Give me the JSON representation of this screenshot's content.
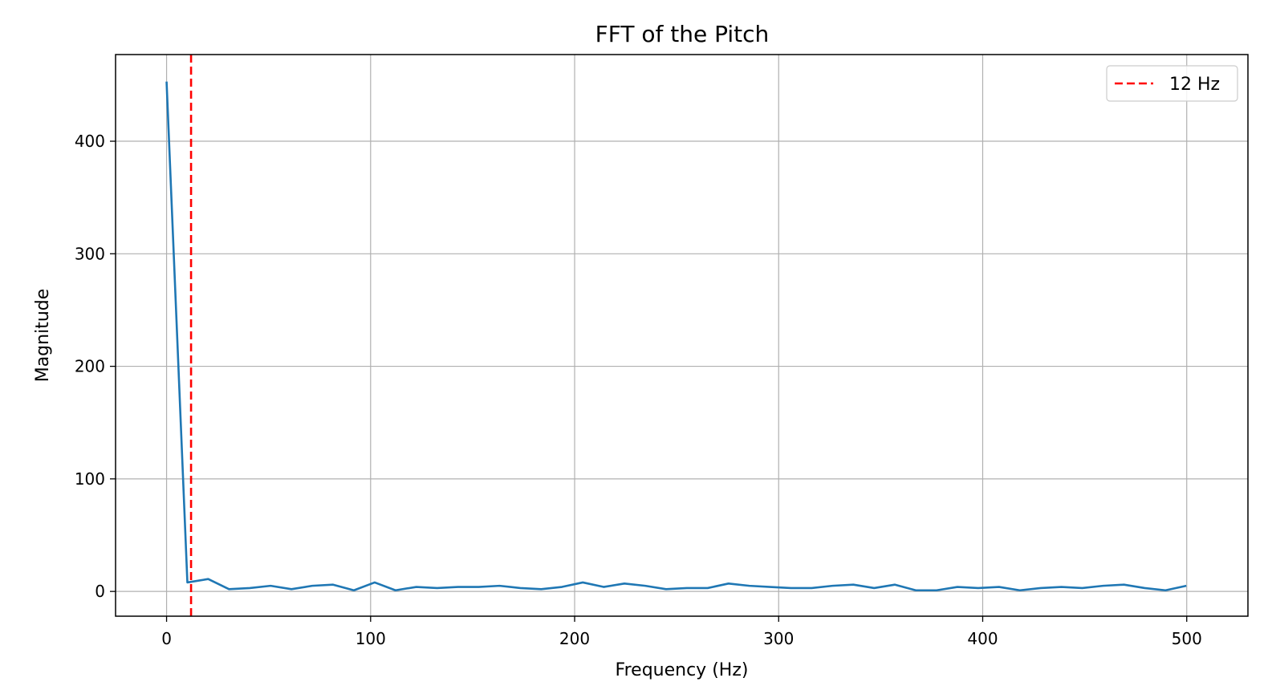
{
  "chart_data": {
    "type": "line",
    "title": "FFT of the Pitch",
    "xlabel": "Frequency (Hz)",
    "ylabel": "Magnitude",
    "xlim": [
      -25,
      530
    ],
    "ylim": [
      -22,
      477
    ],
    "xticks": [
      0,
      100,
      200,
      300,
      400,
      500
    ],
    "yticks": [
      0,
      100,
      200,
      300,
      400
    ],
    "grid": true,
    "legend_position": "top-right",
    "series": [
      {
        "color": "#1f77b4",
        "x": [
          0,
          10.2,
          20.4,
          30.6,
          40.8,
          51.0,
          61.2,
          71.4,
          81.6,
          91.8,
          102.0,
          112.2,
          122.4,
          132.6,
          142.8,
          153.0,
          163.2,
          173.4,
          183.6,
          193.8,
          204.0,
          214.2,
          224.4,
          234.6,
          244.8,
          255.0,
          265.2,
          275.4,
          285.6,
          295.8,
          306.0,
          316.2,
          326.4,
          336.6,
          346.8,
          357.0,
          367.2,
          377.4,
          387.6,
          397.8,
          408.0,
          418.2,
          428.4,
          438.6,
          448.8,
          459.0,
          469.2,
          479.4,
          489.6,
          499.8
        ],
        "y": [
          453,
          8,
          11,
          2,
          3,
          5,
          2,
          5,
          6,
          1,
          8,
          1,
          4,
          3,
          4,
          4,
          5,
          3,
          2,
          4,
          8,
          4,
          7,
          5,
          2,
          3,
          3,
          7,
          5,
          4,
          3,
          3,
          5,
          6,
          3,
          6,
          1,
          1,
          4,
          3,
          4,
          1,
          3,
          4,
          3,
          5,
          6,
          3,
          1,
          5
        ]
      }
    ],
    "vlines": [
      {
        "x": 12,
        "label": "12 Hz",
        "color": "#ff0000",
        "style": "dashed"
      }
    ]
  }
}
